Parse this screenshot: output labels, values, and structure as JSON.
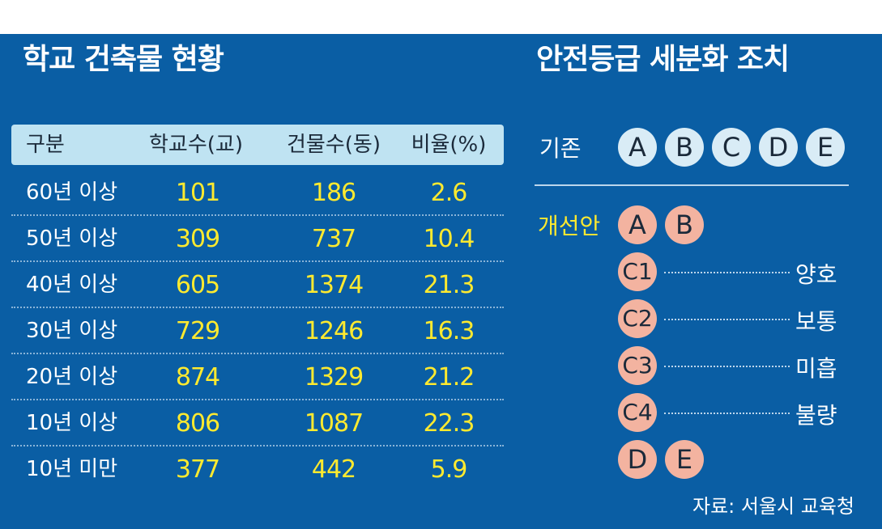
{
  "colors": {
    "panel": "#0a5ea4",
    "header_bg": "#bfe3f2",
    "value": "#ffea2f",
    "current_circle": "#d9ecf6",
    "new_circle": "#f3b3a0"
  },
  "left": {
    "title": "학교 건축물 현황"
  },
  "right": {
    "title": "안전등급 세분화 조치",
    "current_label": "기존",
    "current_grades": [
      "A",
      "B",
      "C",
      "D",
      "E"
    ],
    "new_label": "개선안",
    "new_top": [
      "A",
      "B"
    ],
    "new_c": [
      {
        "grade": "C1",
        "meaning": "양호"
      },
      {
        "grade": "C2",
        "meaning": "보통"
      },
      {
        "grade": "C3",
        "meaning": "미흡"
      },
      {
        "grade": "C4",
        "meaning": "불량"
      }
    ],
    "new_bottom": [
      "D",
      "E"
    ],
    "source": "자료: 서울시 교육청"
  },
  "chart_data": {
    "type": "table",
    "title": "학교 건축물 현황",
    "columns": [
      "구분",
      "학교수(교)",
      "건물수(동)",
      "비율(%)"
    ],
    "rows": [
      [
        "60년 이상",
        "101",
        "186",
        "2.6"
      ],
      [
        "50년 이상",
        "309",
        "737",
        "10.4"
      ],
      [
        "40년 이상",
        "605",
        "1374",
        "21.3"
      ],
      [
        "30년 이상",
        "729",
        "1246",
        "16.3"
      ],
      [
        "20년 이상",
        "874",
        "1329",
        "21.2"
      ],
      [
        "10년 이상",
        "806",
        "1087",
        "22.3"
      ],
      [
        "10년 미만",
        "377",
        "442",
        "5.9"
      ]
    ]
  }
}
